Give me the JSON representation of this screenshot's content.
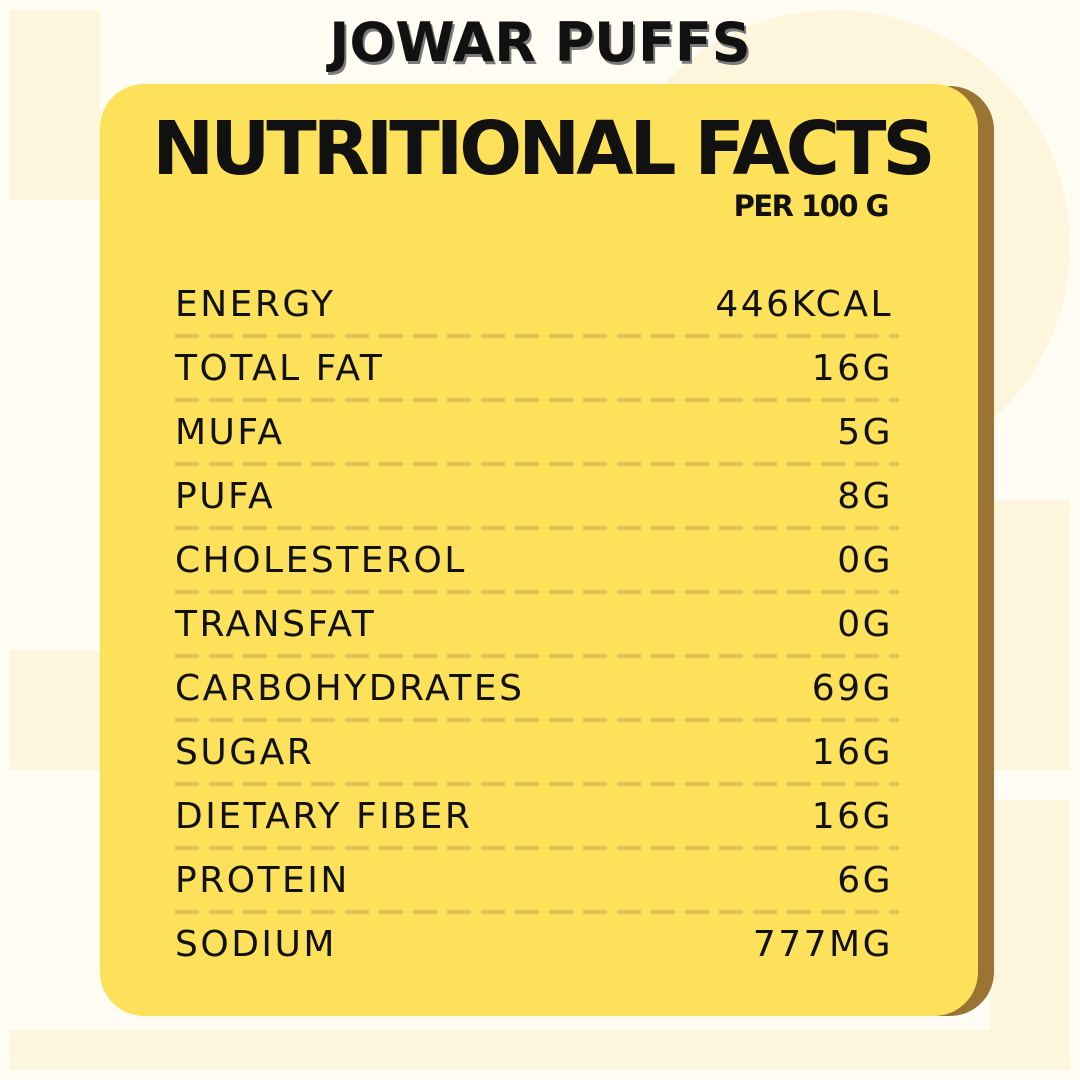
{
  "product_title": "JOWAR PUFFS",
  "panel": {
    "heading": "NUTRITIONAL FACTS",
    "serving": "PER 100 G"
  },
  "nutrients": [
    {
      "label": "ENERGY",
      "value": "446KCAL"
    },
    {
      "label": "TOTAL FAT",
      "value": "16G"
    },
    {
      "label": "MUFA",
      "value": "5G"
    },
    {
      "label": "PUFA",
      "value": "8G"
    },
    {
      "label": "CHOLESTEROL",
      "value": "0G"
    },
    {
      "label": "TRANSFAT",
      "value": "0G"
    },
    {
      "label": "CARBOHYDRATES",
      "value": "69G"
    },
    {
      "label": "SUGAR",
      "value": "16G"
    },
    {
      "label": "DIETARY FIBER",
      "value": "16G"
    },
    {
      "label": "PROTEIN",
      "value": "6G"
    },
    {
      "label": "SODIUM",
      "value": "777MG"
    }
  ],
  "colors": {
    "card": "#fde15a",
    "card_shadow": "#9a7433",
    "divider": "#e2c253",
    "text": "#111111",
    "background": "#fffdf3"
  }
}
